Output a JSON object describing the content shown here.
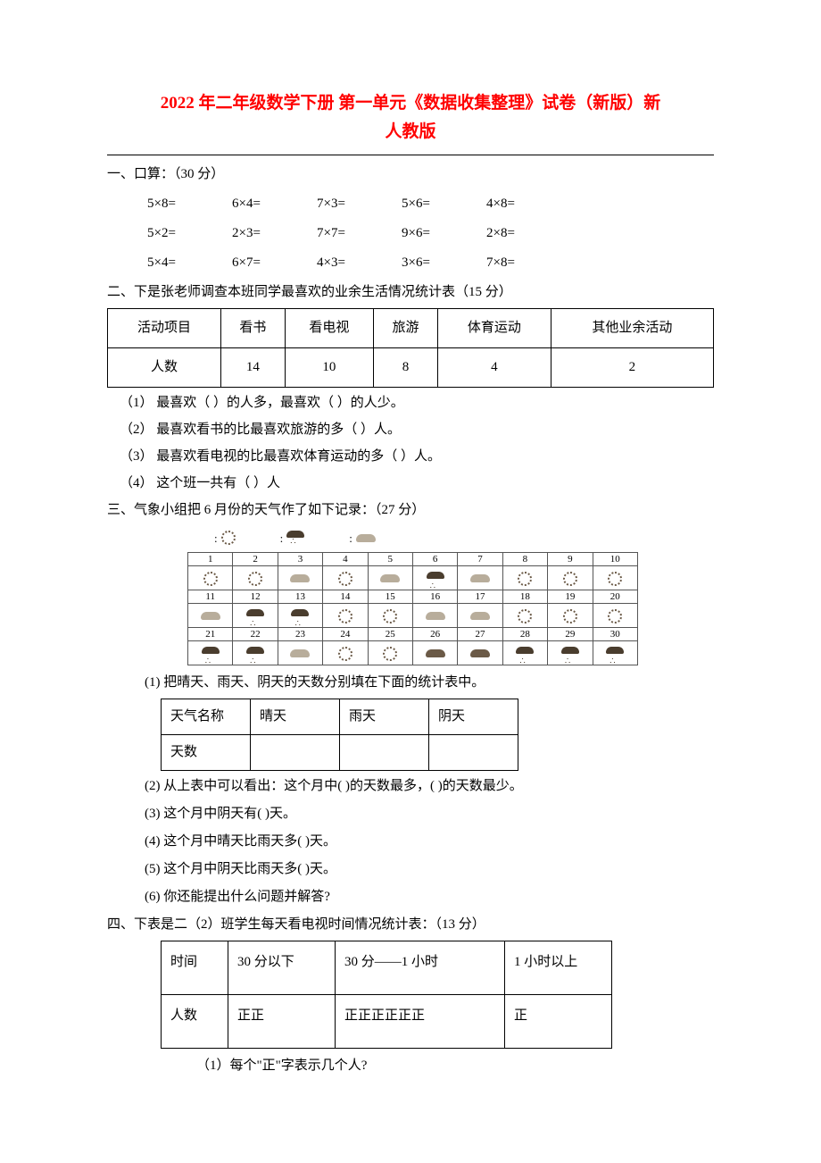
{
  "title_line1": "2022 年二年级数学下册 第一单元《数据收集整理》试卷（新版）新",
  "title_line2": "人教版",
  "section1": {
    "heading": "一、口算：（30 分）",
    "rows": [
      [
        "5×8=",
        "6×4=",
        "7×3=",
        "5×6=",
        "4×8="
      ],
      [
        "5×2=",
        "2×3=",
        "7×7=",
        "9×6=",
        "2×8="
      ],
      [
        "5×4=",
        "6×7=",
        "4×3=",
        "3×6=",
        "7×8="
      ]
    ]
  },
  "section2": {
    "heading": "二、下是张老师调查本班同学最喜欢的业余生活情况统计表（15 分）",
    "table": {
      "row1": [
        "活动项目",
        "看书",
        "看电视",
        "旅游",
        "体育运动",
        "其他业余活动"
      ],
      "row2": [
        "人数",
        "14",
        "10",
        "8",
        "4",
        "2"
      ]
    },
    "q1": "（1）  最喜欢（  ）的人多，最喜欢（  ）的人少。",
    "q2": "（2）  最喜欢看书的比最喜欢旅游的多（   ）人。",
    "q3": "（3）  最喜欢看电视的比最喜欢体育运动的多（   ）人。",
    "q4": "（4）  这个班一共有（   ）人"
  },
  "section3": {
    "heading": "三、气象小组把 6 月份的天气作了如下记录：（27 分）",
    "legend": [
      ":",
      ":",
      ":"
    ],
    "days": [
      {
        "n": "1",
        "w": "sun"
      },
      {
        "n": "2",
        "w": "sun"
      },
      {
        "n": "3",
        "w": "cloud-l"
      },
      {
        "n": "4",
        "w": "sun"
      },
      {
        "n": "5",
        "w": "cloud-l"
      },
      {
        "n": "6",
        "w": "rain"
      },
      {
        "n": "7",
        "w": "cloud-l"
      },
      {
        "n": "8",
        "w": "sun"
      },
      {
        "n": "9",
        "w": "sun"
      },
      {
        "n": "10",
        "w": "sun"
      },
      {
        "n": "11",
        "w": "cloud-l"
      },
      {
        "n": "12",
        "w": "rain"
      },
      {
        "n": "13",
        "w": "rain"
      },
      {
        "n": "14",
        "w": "sun"
      },
      {
        "n": "15",
        "w": "sun"
      },
      {
        "n": "16",
        "w": "cloud-l"
      },
      {
        "n": "17",
        "w": "cloud-l"
      },
      {
        "n": "18",
        "w": "sun"
      },
      {
        "n": "19",
        "w": "sun"
      },
      {
        "n": "20",
        "w": "sun"
      },
      {
        "n": "21",
        "w": "rain"
      },
      {
        "n": "22",
        "w": "rain"
      },
      {
        "n": "23",
        "w": "cloud-l"
      },
      {
        "n": "24",
        "w": "sun"
      },
      {
        "n": "25",
        "w": "sun"
      },
      {
        "n": "26",
        "w": "cloud"
      },
      {
        "n": "27",
        "w": "cloud"
      },
      {
        "n": "28",
        "w": "rain"
      },
      {
        "n": "29",
        "w": "rain"
      },
      {
        "n": "30",
        "w": "rain"
      }
    ],
    "q1": "(1) 把晴天、雨天、阴天的天数分别填在下面的统计表中。",
    "fill_table": {
      "row1": [
        "天气名称",
        "晴天",
        "雨天",
        "阴天"
      ],
      "row2": [
        "天数",
        "",
        "",
        ""
      ]
    },
    "q2": "(2) 从上表中可以看出：这个月中(    )的天数最多，(    )的天数最少。",
    "q3": "(3) 这个月中阴天有(    )天。",
    "q4": "(4) 这个月中晴天比雨天多(    )天。",
    "q5": "(5) 这个月中阴天比雨天多(    )天。",
    "q6": "(6) 你还能提出什么问题并解答?"
  },
  "section4": {
    "heading": "四、下表是二（2）班学生每天看电视时间情况统计表：（13 分）",
    "table": {
      "row1": [
        "时间",
        "30 分以下",
        "30 分——1 小时",
        "1 小时以上"
      ],
      "row2": [
        "人数",
        "正正",
        "正正正正正正",
        "正"
      ]
    },
    "q1": "（1）每个\"正\"字表示几个人?"
  }
}
